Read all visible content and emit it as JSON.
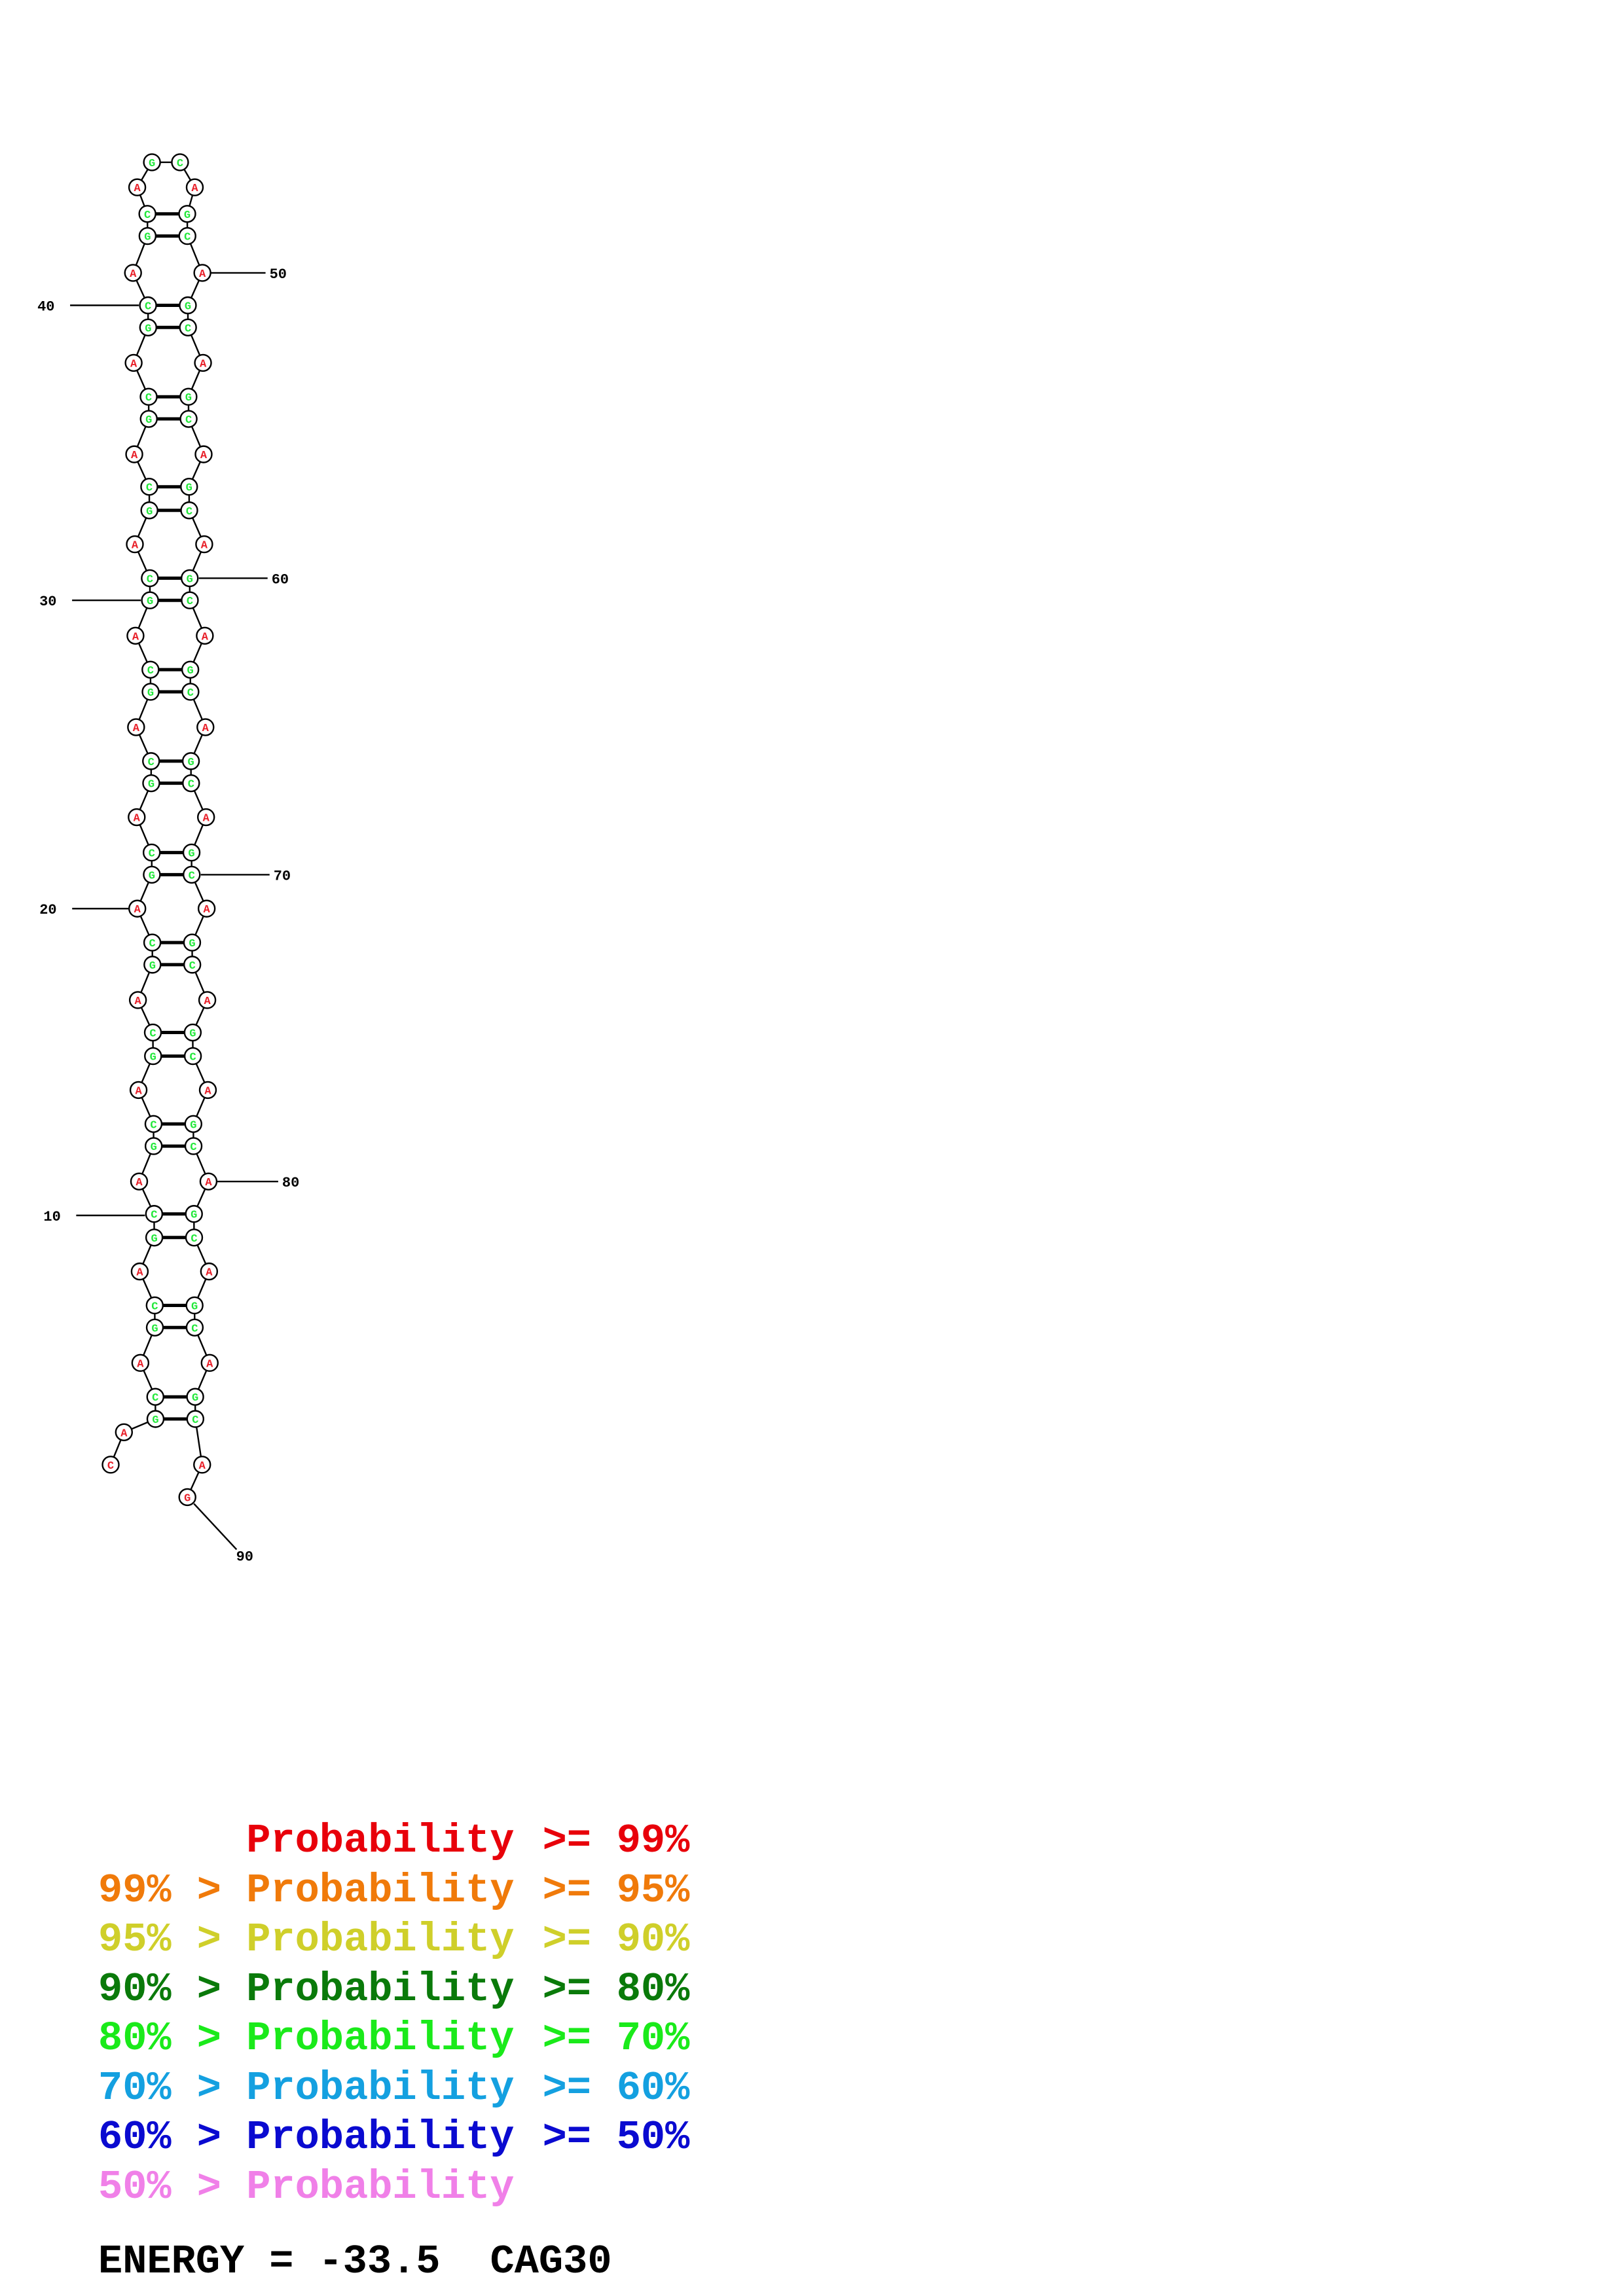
{
  "structure": {
    "sequence": "CAGCAGCAGCAGCAGCAGCAGCAGCAGCAGCAGCAGCAGCAGCAGCAGCAGCAGCAGCAGCAGCAGCAGCAGCAGCAGCAGCAGCAGCAG",
    "nucleotide_colors": {
      "A": "#e8202a",
      "G": "#e8202a",
      "C": "#e8202a",
      "paired": "#22e83a"
    },
    "position_labels": [
      "10",
      "20",
      "30",
      "40",
      "50",
      "60",
      "70",
      "80",
      "90"
    ]
  },
  "legend": {
    "rows": [
      {
        "left": "",
        "gt": "",
        "prob": "Probability",
        "ge": ">=",
        "right": "99%",
        "color": "#e8000a"
      },
      {
        "left": "99%",
        "gt": ">",
        "prob": "Probability",
        "ge": ">=",
        "right": "95%",
        "color": "#f07a0a"
      },
      {
        "left": "95%",
        "gt": ">",
        "prob": "Probability",
        "ge": ">=",
        "right": "90%",
        "color": "#cfcf2a"
      },
      {
        "left": "90%",
        "gt": ">",
        "prob": "Probability",
        "ge": ">=",
        "right": "80%",
        "color": "#0a7a0a"
      },
      {
        "left": "80%",
        "gt": ">",
        "prob": "Probability",
        "ge": ">=",
        "right": "70%",
        "color": "#1aea1a"
      },
      {
        "left": "70%",
        "gt": ">",
        "prob": "Probability",
        "ge": ">=",
        "right": "60%",
        "color": "#14a0e0"
      },
      {
        "left": "60%",
        "gt": ">",
        "prob": "Probability",
        "ge": ">=",
        "right": "50%",
        "color": "#0a0ad0"
      },
      {
        "left": "50%",
        "gt": ">",
        "prob": "Probability",
        "ge": "",
        "right": "",
        "color": "#f080e8"
      }
    ]
  },
  "footer": {
    "energy_label": "ENERGY",
    "equals": "=",
    "energy_value": "-33.5",
    "name": "CAG30"
  }
}
